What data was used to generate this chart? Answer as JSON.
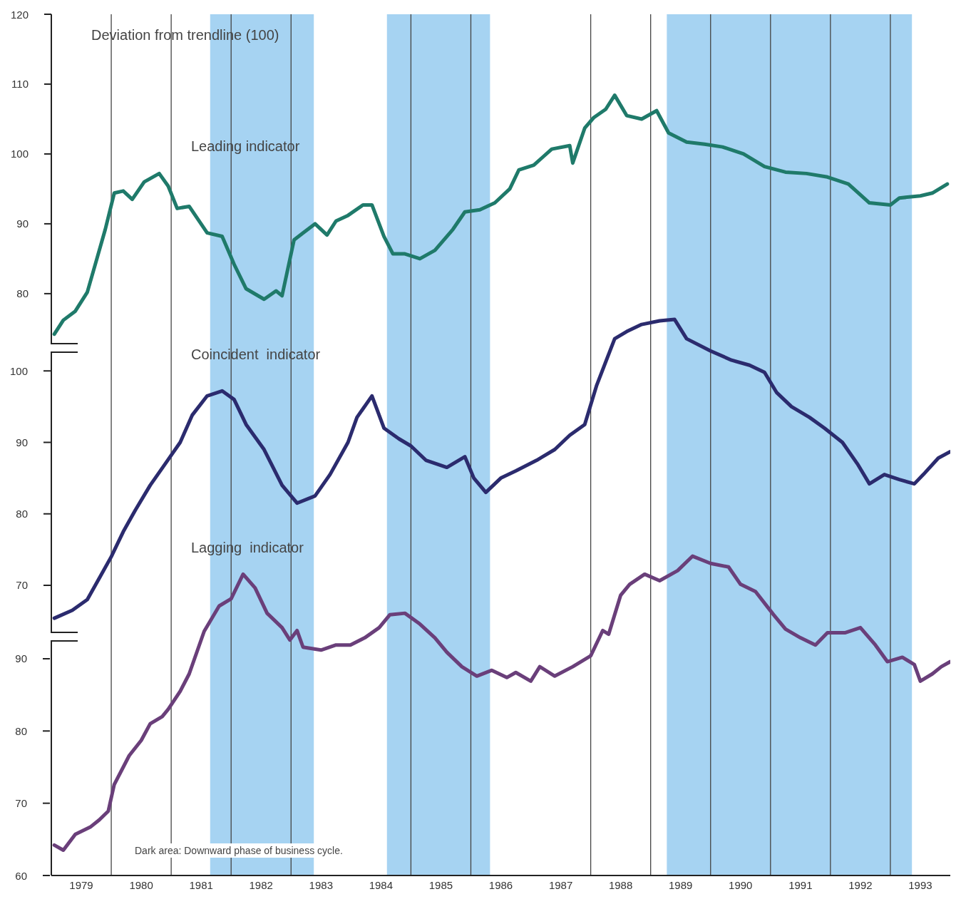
{
  "chart_data": {
    "type": "line",
    "annotations": [
      "Deviation from trendline (100)",
      "Dark area: Downward phase of business cycle."
    ],
    "xlim": [
      1979,
      1994
    ],
    "xticks": [
      {
        "value": 1979.5,
        "label": "1979"
      },
      {
        "value": 1980.5,
        "label": "1980"
      },
      {
        "value": 1981.5,
        "label": "1981"
      },
      {
        "value": 1982.5,
        "label": "1982"
      },
      {
        "value": 1983.5,
        "label": "1983"
      },
      {
        "value": 1984.5,
        "label": "1984"
      },
      {
        "value": 1985.5,
        "label": "1985"
      },
      {
        "value": 1986.5,
        "label": "1986"
      },
      {
        "value": 1987.5,
        "label": "1987"
      },
      {
        "value": 1988.5,
        "label": "1988"
      },
      {
        "value": 1989.5,
        "label": "1989"
      },
      {
        "value": 1990.5,
        "label": "1990"
      },
      {
        "value": 1991.5,
        "label": "1991"
      },
      {
        "value": 1992.5,
        "label": "1992"
      },
      {
        "value": 1993.5,
        "label": "1993"
      }
    ],
    "ylim": [
      -3.3,
      120
    ],
    "yticks": [
      80,
      90,
      100,
      110,
      120
    ],
    "y2lim": [
      29.4,
      149.9
    ],
    "y2ticks": [
      70,
      80,
      90,
      100
    ],
    "y3lim": [
      60,
      179.2
    ],
    "y3ticks": [
      60,
      70,
      80,
      90
    ],
    "grid": false,
    "legend": false,
    "marker": "none",
    "line_style": "solid",
    "bands": [
      {
        "axis": "x",
        "from": 1981.65,
        "to": 1983.38,
        "color": "#a6d3f2"
      },
      {
        "axis": "x",
        "from": 1984.6,
        "to": 1986.32,
        "color": "#a6d3f2"
      },
      {
        "axis": "x",
        "from": 1989.27,
        "to": 1993.36,
        "color": "#a6d3f2"
      }
    ],
    "ref_lines": [
      {
        "axis": "x",
        "value": 1980,
        "color": "#444444"
      },
      {
        "axis": "x",
        "value": 1981,
        "color": "#444444"
      },
      {
        "axis": "x",
        "value": 1982,
        "color": "#444444"
      },
      {
        "axis": "x",
        "value": 1983,
        "color": "#444444"
      },
      {
        "axis": "x",
        "value": 1985,
        "color": "#444444"
      },
      {
        "axis": "x",
        "value": 1986,
        "color": "#444444"
      },
      {
        "axis": "x",
        "value": 1988,
        "color": "#444444"
      },
      {
        "axis": "x",
        "value": 1989,
        "color": "#444444"
      },
      {
        "axis": "x",
        "value": 1990,
        "color": "#444444"
      },
      {
        "axis": "x",
        "value": 1991,
        "color": "#444444"
      },
      {
        "axis": "x",
        "value": 1992,
        "color": "#444444"
      },
      {
        "axis": "x",
        "value": 1993,
        "color": "#444444"
      }
    ],
    "series": [
      {
        "name": "Leading indicator",
        "color": "#1f7a6a",
        "axis": "y",
        "x": [
          1979.05,
          1979.2,
          1979.4,
          1979.6,
          1979.75,
          1979.9,
          1980.05,
          1980.2,
          1980.35,
          1980.55,
          1980.8,
          1980.95,
          1981.1,
          1981.3,
          1981.6,
          1981.85,
          1982.05,
          1982.25,
          1982.55,
          1982.75,
          1982.85,
          1983.05,
          1983.2,
          1983.4,
          1983.6,
          1983.75,
          1983.95,
          1984.2,
          1984.35,
          1984.55,
          1984.7,
          1984.9,
          1985.15,
          1985.4,
          1985.7,
          1985.9,
          1986.15,
          1986.4,
          1986.65,
          1986.8,
          1987.05,
          1987.35,
          1987.65,
          1987.7,
          1987.9,
          1988.05,
          1988.25,
          1988.4,
          1988.6,
          1988.85,
          1989.1,
          1989.3,
          1989.6,
          1989.9,
          1990.2,
          1990.55,
          1990.9,
          1991.25,
          1991.6,
          1991.95,
          1992.3,
          1992.65,
          1993.0,
          1993.15,
          1993.5,
          1993.7,
          1993.95
        ],
        "values": [
          74.2,
          76.2,
          77.5,
          80.2,
          84.7,
          89.2,
          94.4,
          94.7,
          93.5,
          96,
          97.2,
          95.4,
          92.2,
          92.5,
          88.7,
          88.2,
          84.2,
          80.7,
          79.2,
          80.4,
          79.7,
          87.7,
          88.7,
          90,
          88.4,
          90.4,
          91.2,
          92.7,
          92.7,
          88.2,
          85.7,
          85.7,
          85,
          86.2,
          89.2,
          91.7,
          92,
          93,
          95,
          97.7,
          98.4,
          100.7,
          101.2,
          98.7,
          103.7,
          105.2,
          106.4,
          108.4,
          105.5,
          105,
          106.2,
          103,
          101.7,
          101.4,
          101,
          100,
          98.2,
          97.4,
          97.2,
          96.7,
          95.7,
          93,
          92.7,
          93.7,
          94,
          94.4,
          95.7
        ]
      },
      {
        "name": "Coincident  indicator",
        "color": "#2b2b6e",
        "axis": "y2",
        "x": [
          1979.05,
          1979.35,
          1979.6,
          1979.8,
          1980.0,
          1980.2,
          1980.4,
          1980.65,
          1980.9,
          1981.15,
          1981.35,
          1981.6,
          1981.85,
          1982.05,
          1982.25,
          1982.55,
          1982.85,
          1983.1,
          1983.4,
          1983.65,
          1983.95,
          1984.1,
          1984.35,
          1984.55,
          1984.8,
          1985.0,
          1985.25,
          1985.6,
          1985.9,
          1986.05,
          1986.25,
          1986.5,
          1986.75,
          1987.1,
          1987.4,
          1987.65,
          1987.9,
          1988.1,
          1988.4,
          1988.6,
          1988.85,
          1989.15,
          1989.4,
          1989.6,
          1990.0,
          1990.35,
          1990.65,
          1990.9,
          1991.1,
          1991.35,
          1991.65,
          1991.9,
          1992.2,
          1992.45,
          1992.65,
          1992.9,
          1993.15,
          1993.4,
          1993.55,
          1993.8,
          1994.0
        ],
        "values": [
          65.4,
          66.5,
          68,
          71,
          74,
          77.5,
          80.5,
          84,
          87,
          90,
          93.8,
          96.5,
          97.2,
          96,
          92.5,
          89,
          84,
          81.5,
          82.5,
          85.5,
          90,
          93.5,
          96.5,
          92,
          90.5,
          89.5,
          87.5,
          86.5,
          88,
          85,
          83,
          85,
          86,
          87.5,
          89,
          91,
          92.5,
          98,
          104.5,
          105.5,
          106.5,
          107,
          107.2,
          104.5,
          102.8,
          101.5,
          100.8,
          99.8,
          97,
          95,
          93.5,
          92,
          90,
          87,
          84.2,
          85.5,
          84.8,
          84.2,
          85.5,
          87.8,
          88.7
        ]
      },
      {
        "name": "Lagging  indicator",
        "color": "#6a3f7a",
        "axis": "y3",
        "x": [
          1979.05,
          1979.2,
          1979.4,
          1979.65,
          1979.8,
          1979.95,
          1980.05,
          1980.3,
          1980.5,
          1980.65,
          1980.85,
          1980.95,
          1981.15,
          1981.3,
          1981.55,
          1981.8,
          1982.0,
          1982.2,
          1982.4,
          1982.6,
          1982.85,
          1982.98,
          1983.1,
          1983.2,
          1983.5,
          1983.75,
          1983.99,
          1984.23,
          1984.47,
          1984.65,
          1984.9,
          1985.15,
          1985.4,
          1985.6,
          1985.85,
          1986.1,
          1986.35,
          1986.6,
          1986.75,
          1987.0,
          1987.15,
          1987.4,
          1987.7,
          1988.0,
          1988.2,
          1988.3,
          1988.5,
          1988.65,
          1988.9,
          1989.15,
          1989.45,
          1989.7,
          1990.0,
          1990.3,
          1990.5,
          1990.75,
          1991.05,
          1991.25,
          1991.5,
          1991.75,
          1991.95,
          1992.25,
          1992.5,
          1992.75,
          1992.95,
          1993.2,
          1993.4,
          1993.5,
          1993.7,
          1993.85,
          1994.0
        ],
        "values": [
          64.2,
          63.5,
          65.7,
          66.7,
          67.7,
          68.9,
          72.6,
          76.6,
          78.7,
          81,
          82,
          83,
          85.5,
          87.9,
          93.8,
          97.3,
          98.3,
          101.7,
          99.8,
          96.3,
          94.3,
          92.6,
          93.9,
          91.6,
          91.2,
          91.9,
          91.9,
          92.9,
          94.3,
          96.1,
          96.3,
          94.8,
          92.9,
          90.9,
          88.9,
          87.6,
          88.4,
          87.4,
          88.1,
          86.9,
          88.9,
          87.6,
          88.9,
          90.4,
          93.9,
          93.4,
          98.8,
          100.3,
          101.7,
          100.8,
          102.2,
          104.2,
          103.2,
          102.7,
          100.3,
          99.3,
          96.1,
          94.1,
          92.9,
          91.9,
          93.6,
          93.6,
          94.3,
          91.9,
          89.6,
          90.2,
          89.2,
          86.9,
          87.9,
          88.9,
          89.6
        ]
      }
    ]
  }
}
